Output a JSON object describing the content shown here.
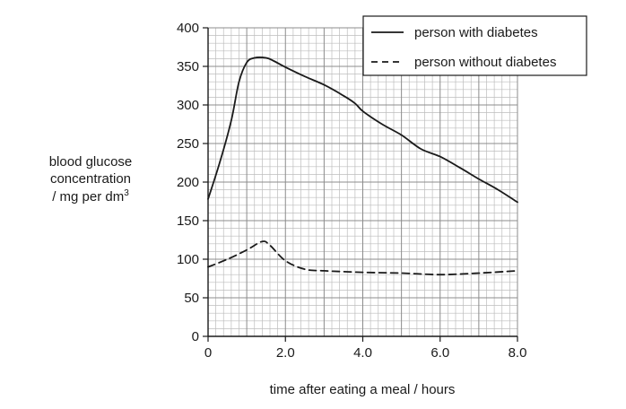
{
  "chart_data": {
    "type": "line",
    "xlabel": "time after eating a meal / hours",
    "ylabel": {
      "line1": "blood glucose",
      "line2": "concentration",
      "line3_prefix": "/ mg per dm",
      "line3_sup": "3"
    },
    "xlim": [
      0,
      8
    ],
    "ylim": [
      0,
      400
    ],
    "x_ticks": [
      {
        "value": 0,
        "label": "0"
      },
      {
        "value": 2,
        "label": "2.0"
      },
      {
        "value": 4,
        "label": "4.0"
      },
      {
        "value": 6,
        "label": "6.0"
      },
      {
        "value": 8,
        "label": "8.0"
      }
    ],
    "y_ticks": [
      {
        "value": 0,
        "label": "0"
      },
      {
        "value": 50,
        "label": "50"
      },
      {
        "value": 100,
        "label": "100"
      },
      {
        "value": 150,
        "label": "150"
      },
      {
        "value": 200,
        "label": "200"
      },
      {
        "value": 250,
        "label": "250"
      },
      {
        "value": 300,
        "label": "300"
      },
      {
        "value": 350,
        "label": "350"
      },
      {
        "value": 400,
        "label": "400"
      }
    ],
    "grid": true,
    "legend_position": "top-right",
    "series": [
      {
        "name": "person with diabetes",
        "style": "solid",
        "color": "#1a1a1a",
        "points": [
          [
            0,
            178
          ],
          [
            0.3,
            225
          ],
          [
            0.6,
            280
          ],
          [
            0.8,
            330
          ],
          [
            1.0,
            355
          ],
          [
            1.2,
            361
          ],
          [
            1.5,
            361
          ],
          [
            1.7,
            357
          ],
          [
            2.0,
            349
          ],
          [
            2.5,
            337
          ],
          [
            3.0,
            326
          ],
          [
            3.5,
            312
          ],
          [
            3.8,
            302
          ],
          [
            4.0,
            292
          ],
          [
            4.5,
            275
          ],
          [
            5.0,
            261
          ],
          [
            5.5,
            243
          ],
          [
            6.0,
            233
          ],
          [
            6.5,
            219
          ],
          [
            7.0,
            204
          ],
          [
            7.5,
            190
          ],
          [
            8.0,
            174
          ]
        ]
      },
      {
        "name": "person without diabetes",
        "style": "dashed",
        "color": "#1a1a1a",
        "points": [
          [
            0,
            90
          ],
          [
            0.5,
            100
          ],
          [
            1.0,
            112
          ],
          [
            1.4,
            123
          ],
          [
            1.6,
            118
          ],
          [
            2.0,
            98
          ],
          [
            2.5,
            87
          ],
          [
            3.0,
            85
          ],
          [
            4.0,
            83
          ],
          [
            5.0,
            82
          ],
          [
            6.0,
            80
          ],
          [
            7.0,
            82
          ],
          [
            8.0,
            85
          ]
        ]
      }
    ]
  }
}
